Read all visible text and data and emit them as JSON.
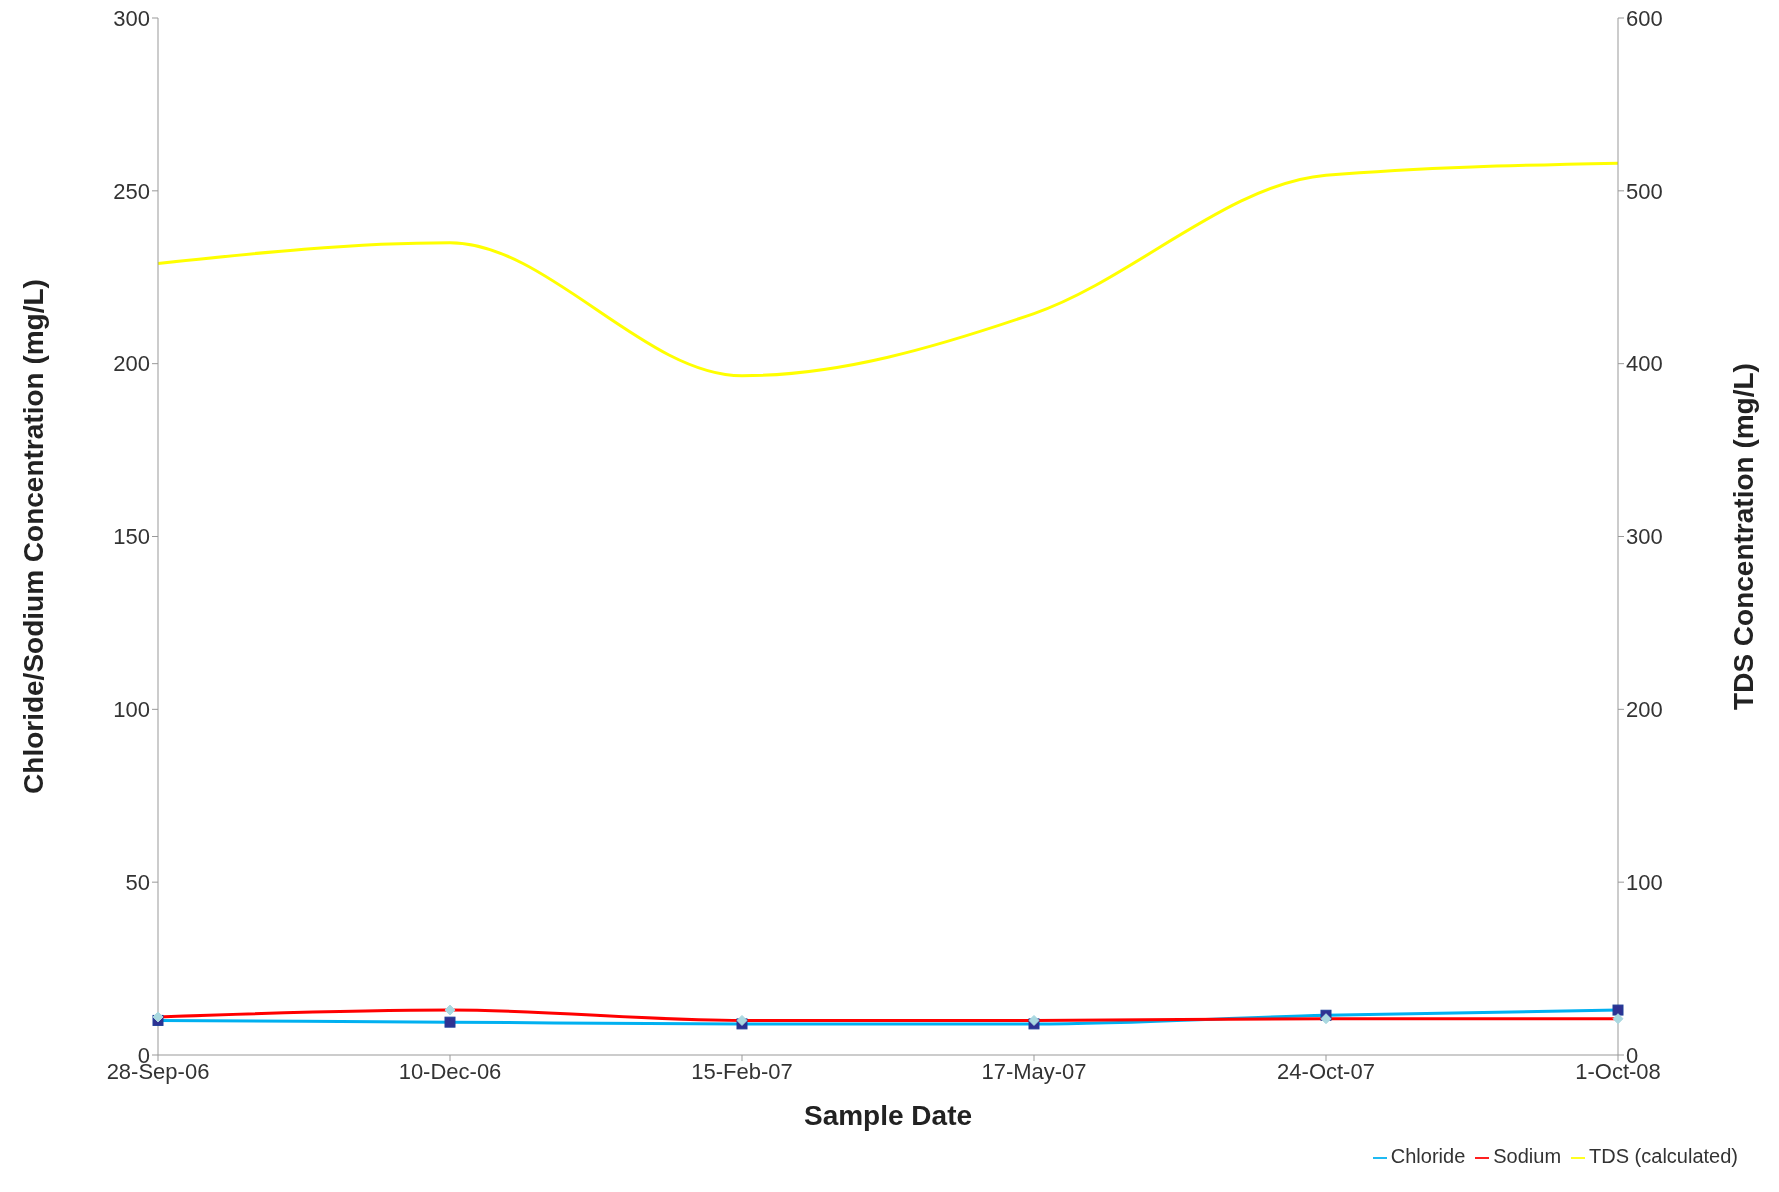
{
  "chart_data": {
    "type": "line",
    "xlabel": "Sample Date",
    "ylabel": "Chloride/Sodium Concentration (mg/L)",
    "y2label": "TDS Concentration (mg/L)",
    "categories": [
      "28-Sep-06",
      "10-Dec-06",
      "15-Feb-07",
      "17-May-07",
      "24-Oct-07",
      "1-Oct-08"
    ],
    "series": [
      {
        "name": "Chloride",
        "color": "#00b0f0",
        "marker": "square",
        "values": [
          10,
          9.5,
          9,
          9,
          11.5,
          13
        ]
      },
      {
        "name": "Sodium",
        "color": "#ff0000",
        "marker": "diamond",
        "values": [
          11,
          13,
          10,
          10,
          10.5,
          10.5
        ]
      },
      {
        "name": "TDS (calculated)",
        "color": "#ffff00",
        "marker": "none",
        "axis": "y2",
        "values": [
          458,
          470,
          393,
          429,
          509,
          516
        ]
      }
    ],
    "ylim": [
      0,
      300
    ],
    "yticks": [
      0,
      50,
      100,
      150,
      200,
      250,
      300
    ],
    "y2lim": [
      0,
      600
    ],
    "y2ticks": [
      0,
      100,
      200,
      300,
      400,
      500,
      600
    ],
    "grid": false,
    "legend": "bottom right"
  }
}
